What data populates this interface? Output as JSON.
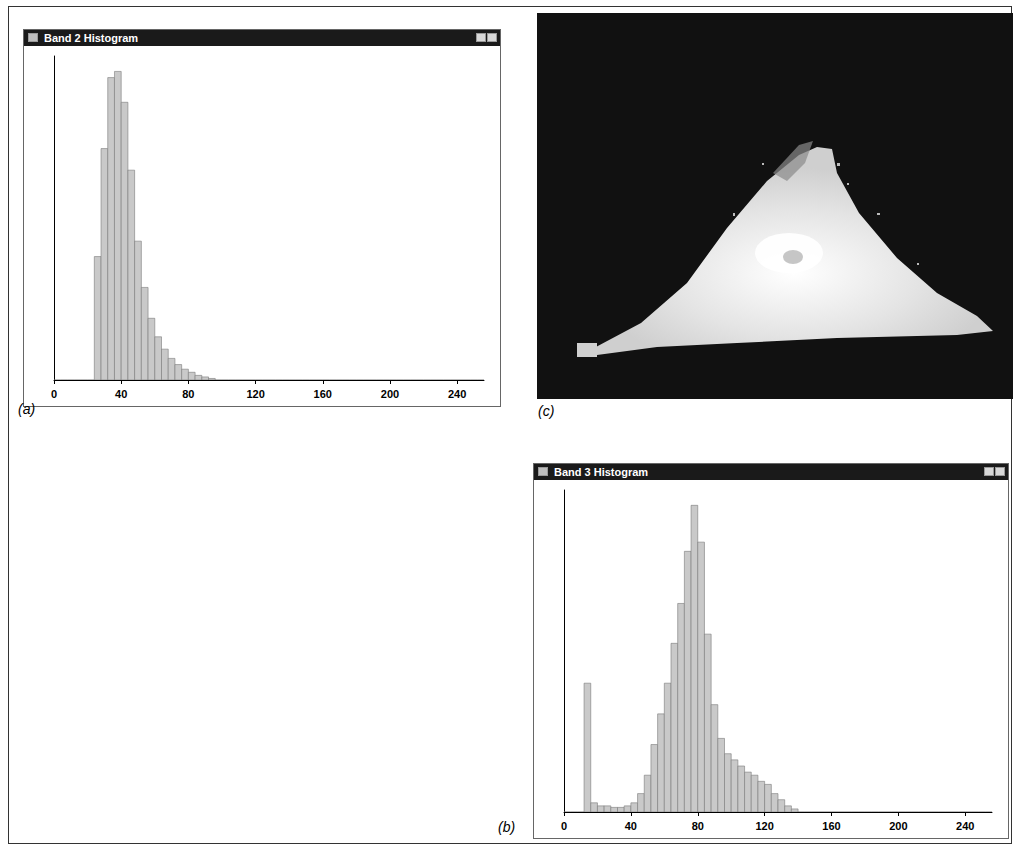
{
  "chart_data": [
    {
      "type": "histogram",
      "title": "Band 2 Histogram",
      "panel_label": "(a)",
      "color": "#c9c9c9",
      "bins": [
        0,
        4,
        8,
        12,
        16,
        20,
        24,
        28,
        32,
        36,
        40,
        44,
        48,
        52,
        56,
        60,
        64,
        68,
        72,
        76,
        80,
        84,
        88,
        92,
        96,
        100,
        104,
        108,
        112,
        116,
        120,
        124,
        128,
        132,
        136,
        140,
        144,
        148,
        152,
        156,
        160,
        164,
        168,
        172,
        176,
        180,
        184,
        188,
        192,
        196,
        200,
        204,
        208,
        212,
        216,
        220,
        224,
        228,
        232,
        236,
        240,
        244,
        248,
        252,
        256
      ],
      "values": [
        0,
        0,
        0,
        0,
        0,
        0,
        40,
        75,
        98,
        100,
        90,
        68,
        45,
        30,
        20,
        14,
        10,
        7,
        5,
        3.5,
        2.5,
        1.5,
        1,
        0.5,
        0,
        0,
        0,
        0,
        0,
        0,
        0,
        0,
        0,
        0,
        0,
        0,
        0,
        0,
        0,
        0,
        0,
        0,
        0,
        0,
        0,
        0,
        0,
        0,
        0,
        0,
        0,
        0,
        0,
        0,
        0,
        0,
        0,
        0,
        0,
        0,
        0,
        0,
        0,
        0
      ],
      "xlim": [
        0,
        256
      ],
      "xticks": [
        0,
        40,
        80,
        120,
        160,
        200,
        240
      ],
      "ylim": [
        0,
        105
      ],
      "tick_labels": "x",
      "grid": false
    },
    {
      "type": "histogram",
      "title": "Band 3 Histogram",
      "panel_label": "(b)",
      "color": "#c9c9c9",
      "bins": [
        0,
        4,
        8,
        12,
        16,
        20,
        24,
        28,
        32,
        36,
        40,
        44,
        48,
        52,
        56,
        60,
        64,
        68,
        72,
        76,
        80,
        84,
        88,
        92,
        96,
        100,
        104,
        108,
        112,
        116,
        120,
        124,
        128,
        132,
        136,
        140,
        144,
        148,
        152,
        156,
        160,
        164,
        168,
        172,
        176,
        180,
        184,
        188,
        192,
        196,
        200,
        204,
        208,
        212,
        216,
        220,
        224,
        228,
        232,
        236,
        240,
        244,
        248,
        252,
        256
      ],
      "values": [
        0,
        0,
        0,
        42,
        3,
        2,
        2,
        1.5,
        1.5,
        2,
        3,
        6,
        12,
        22,
        32,
        42,
        55,
        68,
        85,
        100,
        88,
        58,
        35,
        24,
        19,
        17,
        15,
        13,
        12,
        10,
        9,
        6,
        4,
        2,
        1,
        0,
        0,
        0,
        0,
        0,
        0,
        0,
        0,
        0,
        0,
        0,
        0,
        0,
        0,
        0,
        0,
        0,
        0,
        0,
        0,
        0,
        0,
        0,
        0,
        0,
        0,
        0,
        0,
        0
      ],
      "xlim": [
        0,
        256
      ],
      "xticks": [
        0,
        40,
        80,
        120,
        160,
        200,
        240
      ],
      "ylim": [
        0,
        105
      ],
      "tick_labels": "x",
      "grid": false
    }
  ],
  "image_panel": {
    "label": "(c)"
  }
}
